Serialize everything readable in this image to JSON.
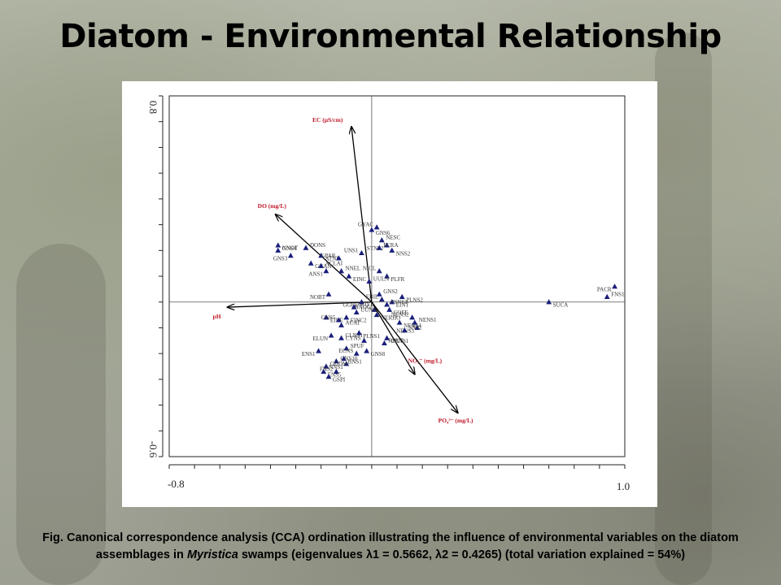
{
  "slide": {
    "title": "Diatom - Environmental Relationship",
    "caption_prefix": "Fig. Canonical correspondence analysis (CCA) ordination illustrating the influence of environmental variables on the diatom assemblages in ",
    "caption_italic": "Myristica",
    "caption_suffix": " swamps (eigenvalues λ1 = 0.5662, λ2 = 0.4265) (total variation explained = 54%)"
  },
  "chart_data": {
    "type": "scatter",
    "subtype": "CCA biplot",
    "xlim": [
      -0.8,
      1.0
    ],
    "ylim": [
      -0.6,
      0.8
    ],
    "x_tick_labels": [
      "-0.8",
      "1.0"
    ],
    "y_tick_labels": [
      "0.8",
      "-0.6"
    ],
    "marker": "triangle",
    "marker_color": "#1a1f7a",
    "arrow_color": "#000000",
    "label_color": "#c0182a",
    "environmental_vectors": [
      {
        "name": "EC (μS/cm)",
        "x": -0.08,
        "y": 0.68
      },
      {
        "name": "DO (mg/L)",
        "x": -0.38,
        "y": 0.34
      },
      {
        "name": "pH",
        "x": -0.57,
        "y": -0.02
      },
      {
        "name": "NO₃⁻ (mg/L)",
        "x": 0.17,
        "y": -0.28
      },
      {
        "name": "PO₄³⁻ (mg/L)",
        "x": 0.34,
        "y": -0.43
      }
    ],
    "species": [
      {
        "name": "GYAC",
        "x": 0.02,
        "y": 0.29
      },
      {
        "name": "GNS6",
        "x": 0.0,
        "y": 0.28
      },
      {
        "name": "NESC",
        "x": 0.04,
        "y": 0.24
      },
      {
        "name": "STNS2",
        "x": 0.06,
        "y": 0.22
      },
      {
        "name": "FCRA",
        "x": 0.03,
        "y": 0.21
      },
      {
        "name": "NNS2",
        "x": 0.08,
        "y": 0.2
      },
      {
        "name": "UNS1",
        "x": -0.04,
        "y": 0.19
      },
      {
        "name": "GNS4",
        "x": -0.37,
        "y": 0.22
      },
      {
        "name": "NNOT",
        "x": -0.37,
        "y": 0.2
      },
      {
        "name": "GNS3",
        "x": -0.32,
        "y": 0.18
      },
      {
        "name": "DONS",
        "x": -0.26,
        "y": 0.21
      },
      {
        "name": "ATNI",
        "x": -0.2,
        "y": 0.18
      },
      {
        "name": "GPAR",
        "x": -0.13,
        "y": 0.17
      },
      {
        "name": "GGAN",
        "x": -0.24,
        "y": 0.15
      },
      {
        "name": "ACLAI",
        "x": -0.2,
        "y": 0.14
      },
      {
        "name": "ANS1",
        "x": -0.18,
        "y": 0.12
      },
      {
        "name": "NNEL",
        "x": -0.12,
        "y": 0.12
      },
      {
        "name": "EINC",
        "x": -0.09,
        "y": 0.1
      },
      {
        "name": "NICL",
        "x": 0.03,
        "y": 0.12
      },
      {
        "name": "PLFR",
        "x": 0.06,
        "y": 0.1
      },
      {
        "name": "UULN",
        "x": -0.01,
        "y": 0.08
      },
      {
        "name": "NOBT",
        "x": -0.17,
        "y": 0.03
      },
      {
        "name": "GNS2",
        "x": 0.03,
        "y": 0.03
      },
      {
        "name": "PLNS2",
        "x": 0.12,
        "y": 0.02
      },
      {
        "name": "EBIL",
        "x": 0.04,
        "y": 0.01
      },
      {
        "name": "EINT",
        "x": 0.08,
        "y": 0.0
      },
      {
        "name": "PSNS1",
        "x": 0.06,
        "y": -0.01
      },
      {
        "name": "GGRE",
        "x": -0.04,
        "y": 0.0
      },
      {
        "name": "GOYE",
        "x": -0.07,
        "y": -0.02
      },
      {
        "name": "COFE",
        "x": 0.07,
        "y": -0.03
      },
      {
        "name": "NAOG",
        "x": 0.01,
        "y": -0.03
      },
      {
        "name": "NERHO",
        "x": 0.02,
        "y": -0.05
      },
      {
        "name": "UUNG",
        "x": -0.06,
        "y": -0.04
      },
      {
        "name": "PACR",
        "x": 0.96,
        "y": 0.06
      },
      {
        "name": "FNS1",
        "x": 0.93,
        "y": 0.02
      },
      {
        "name": "SUCA",
        "x": 0.7,
        "y": 0.0
      },
      {
        "name": "NENS2",
        "x": 0.16,
        "y": -0.06
      },
      {
        "name": "NENS4",
        "x": 0.11,
        "y": -0.08
      },
      {
        "name": "NENS1",
        "x": 0.17,
        "y": -0.08
      },
      {
        "name": "NENS3",
        "x": 0.18,
        "y": -0.1
      },
      {
        "name": "SNS1",
        "x": 0.13,
        "y": -0.11
      },
      {
        "name": "EINE",
        "x": -0.18,
        "y": -0.06
      },
      {
        "name": "GNS5",
        "x": -0.13,
        "y": -0.07
      },
      {
        "name": "EINC2",
        "x": -0.1,
        "y": -0.06
      },
      {
        "name": "ACAT",
        "x": -0.12,
        "y": -0.09
      },
      {
        "name": "ELUN",
        "x": -0.16,
        "y": -0.13
      },
      {
        "name": "CLNS1",
        "x": -0.12,
        "y": -0.14
      },
      {
        "name": "PLNS1",
        "x": -0.05,
        "y": -0.12
      },
      {
        "name": "CYNS",
        "x": -0.03,
        "y": -0.15
      },
      {
        "name": "CBNS1",
        "x": 0.06,
        "y": -0.14
      },
      {
        "name": "RRUF",
        "x": 0.05,
        "y": -0.16
      },
      {
        "name": "ENS1",
        "x": -0.21,
        "y": -0.19
      },
      {
        "name": "SPUF",
        "x": -0.1,
        "y": -0.18
      },
      {
        "name": "GNS8",
        "x": -0.02,
        "y": -0.19
      },
      {
        "name": "ECNS",
        "x": -0.06,
        "y": -0.2
      },
      {
        "name": "BNS1",
        "x": -0.11,
        "y": -0.22
      },
      {
        "name": "GNS10",
        "x": -0.14,
        "y": -0.23
      },
      {
        "name": "NNS1",
        "x": -0.1,
        "y": -0.24
      },
      {
        "name": "GDDM",
        "x": -0.18,
        "y": -0.25
      },
      {
        "name": "ENS5",
        "x": -0.19,
        "y": -0.27
      },
      {
        "name": "FNS2",
        "x": -0.14,
        "y": -0.27
      },
      {
        "name": "GSPI",
        "x": -0.17,
        "y": -0.29
      }
    ]
  }
}
